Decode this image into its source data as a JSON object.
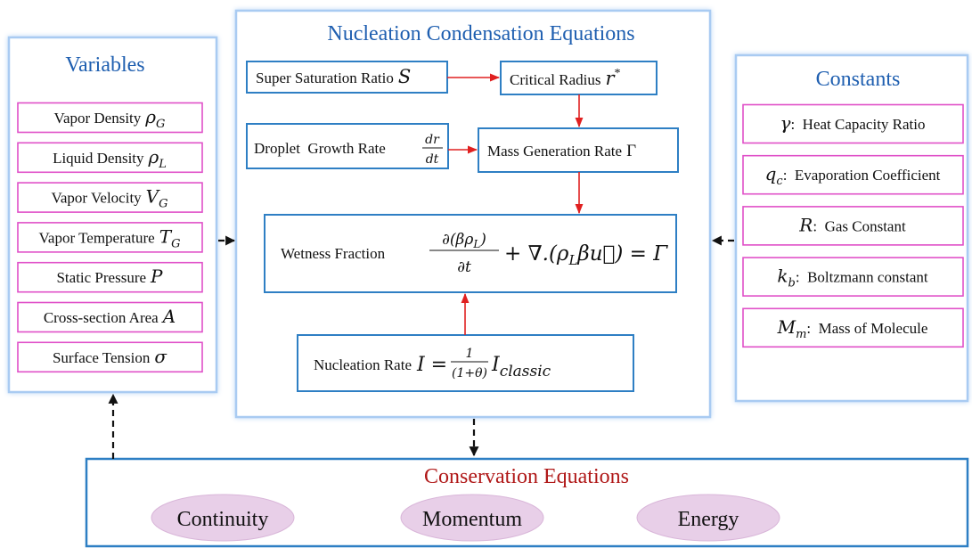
{
  "variables": {
    "title": "Variables",
    "items": [
      {
        "text": "Vapor Density",
        "symbol": "ρ",
        "sub": "G"
      },
      {
        "text": "Liquid Density",
        "symbol": "ρ",
        "sub": "L"
      },
      {
        "text": "Vapor Velocity",
        "symbol": "V",
        "sub": "G"
      },
      {
        "text": "Vapor Temperature",
        "symbol": "T",
        "sub": "G"
      },
      {
        "text": "Static Pressure",
        "symbol": "P"
      },
      {
        "text": "Cross-section Area",
        "symbol": "A"
      },
      {
        "text": "Surface Tension",
        "symbol": "σ"
      }
    ]
  },
  "nucleation": {
    "title": "Nucleation Condensation Equations",
    "super_saturation": {
      "text": "Super Saturation Ratio",
      "symbol": "S"
    },
    "critical_radius": {
      "text": "Critical Radius",
      "symbol": "r",
      "sup": "*"
    },
    "droplet_growth": {
      "text": "Droplet  Growth Rate",
      "numerator": "dr",
      "denominator": "dt"
    },
    "mass_generation": {
      "text": "Mass Generation Rate",
      "symbol": "Γ"
    },
    "wetness": {
      "text": "Wetness Fraction",
      "numerator": [
        "∂(βρ",
        "L",
        ")"
      ],
      "denominator": "∂t",
      "rhs": [
        "+ ∇.(ρ",
        "L",
        "β",
        "u⃗",
        ") = Γ"
      ]
    },
    "nucleation_rate": {
      "text": "Nucleation Rate",
      "lhs": "I =",
      "numerator": "1",
      "denominator": "(1+θ)",
      "symbol": "I",
      "sub": "classic"
    }
  },
  "constants": {
    "title": "Constants",
    "items": [
      {
        "symbol": "γ",
        "text": ":  Heat Capacity Ratio"
      },
      {
        "symbol": "q",
        "sub": "c",
        "text": ":  Evaporation Coefficient"
      },
      {
        "symbol": "R",
        "text": ":  Gas Constant"
      },
      {
        "symbol": "k",
        "sub": "b",
        "text": ":  Boltzmann constant"
      },
      {
        "symbol": "M",
        "sub": "m",
        "text": ":  Mass of Molecule"
      }
    ]
  },
  "conservation": {
    "title": "Conservation Equations",
    "items": [
      "Continuity",
      "Momentum",
      "Energy"
    ]
  }
}
